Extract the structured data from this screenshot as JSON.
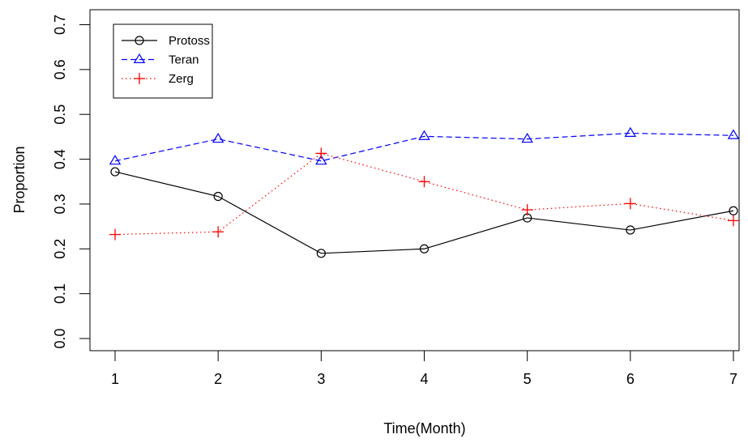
{
  "chart_data": {
    "type": "line",
    "title": "",
    "xlabel": "Time(Month)",
    "ylabel": "Proportion",
    "x": [
      1,
      2,
      3,
      4,
      5,
      6,
      7
    ],
    "x_ticks": [
      "1",
      "2",
      "3",
      "4",
      "5",
      "6",
      "7"
    ],
    "xlim": [
      1,
      7
    ],
    "y_ticks": [
      "0.0",
      "0.1",
      "0.2",
      "0.3",
      "0.4",
      "0.5",
      "0.6",
      "0.7"
    ],
    "ylim": [
      0,
      0.7
    ],
    "grid": false,
    "legend_position": "top-left",
    "series": [
      {
        "name": "Protoss",
        "color": "#000000",
        "line_style": "solid",
        "marker": "circle",
        "values": [
          0.372,
          0.317,
          0.19,
          0.2,
          0.269,
          0.242,
          0.285
        ]
      },
      {
        "name": "Teran",
        "color": "#0000ff",
        "line_style": "dashed",
        "marker": "triangle",
        "values": [
          0.396,
          0.445,
          0.396,
          0.451,
          0.445,
          0.458,
          0.453
        ]
      },
      {
        "name": "Zerg",
        "color": "#ff0000",
        "line_style": "dotted",
        "marker": "plus",
        "values": [
          0.232,
          0.238,
          0.413,
          0.35,
          0.287,
          0.301,
          0.263
        ]
      }
    ]
  }
}
